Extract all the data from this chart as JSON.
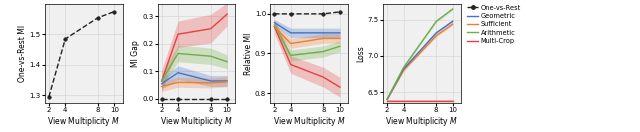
{
  "x": [
    2,
    4,
    8,
    10
  ],
  "panel1": {
    "ylabel": "One-vs-Rest MI",
    "xlabel": "View Multiplicity $M$",
    "ovr_mean": [
      1.295,
      1.485,
      1.555,
      1.575
    ],
    "ylim": [
      1.275,
      1.6
    ]
  },
  "panel2": {
    "ylabel": "MI Gap",
    "xlabel": "View Multiplicity $M$",
    "ylim": [
      -0.015,
      0.345
    ],
    "yticks": [
      0.0,
      0.1,
      0.2,
      0.3
    ],
    "ovr_mean": [
      0.0,
      0.0,
      0.0,
      0.0
    ],
    "geo_mean": [
      0.055,
      0.095,
      0.065,
      0.065
    ],
    "geo_std": [
      0.02,
      0.025,
      0.02,
      0.02
    ],
    "suf_mean": [
      0.045,
      0.06,
      0.058,
      0.062
    ],
    "suf_std": [
      0.018,
      0.018,
      0.018,
      0.018
    ],
    "ari_mean": [
      0.065,
      0.165,
      0.155,
      0.135
    ],
    "ari_std": [
      0.025,
      0.03,
      0.03,
      0.025
    ],
    "mc_mean": [
      0.065,
      0.235,
      0.255,
      0.308
    ],
    "mc_std": [
      0.038,
      0.048,
      0.052,
      0.042
    ]
  },
  "panel3": {
    "ylabel": "Relative MI",
    "xlabel": "View Multiplicity $M$",
    "ylim": [
      0.775,
      1.025
    ],
    "yticks": [
      0.8,
      0.9,
      1.0
    ],
    "ovr_mean": [
      1.0,
      1.0,
      1.0,
      1.005
    ],
    "geo_mean": [
      0.978,
      0.952,
      0.952,
      0.952
    ],
    "geo_std": [
      0.008,
      0.012,
      0.012,
      0.012
    ],
    "suf_mean": [
      0.968,
      0.925,
      0.938,
      0.938
    ],
    "suf_std": [
      0.008,
      0.012,
      0.012,
      0.012
    ],
    "ari_mean": [
      0.972,
      0.895,
      0.905,
      0.918
    ],
    "ari_std": [
      0.008,
      0.014,
      0.014,
      0.014
    ],
    "mc_mean": [
      0.968,
      0.872,
      0.84,
      0.815
    ],
    "mc_std": [
      0.018,
      0.022,
      0.025,
      0.025
    ]
  },
  "panel4": {
    "ylabel": "Loss",
    "xlabel": "View Multiplicity $M$",
    "ylim": [
      6.35,
      7.72
    ],
    "yticks": [
      6.5,
      7.0,
      7.5
    ],
    "geo_mean": [
      6.4,
      6.82,
      7.32,
      7.48
    ],
    "geo_std": [
      0.008,
      0.015,
      0.015,
      0.015
    ],
    "suf_mean": [
      6.4,
      6.8,
      7.28,
      7.44
    ],
    "suf_std": [
      0.008,
      0.015,
      0.015,
      0.015
    ],
    "ari_mean": [
      6.4,
      6.84,
      7.48,
      7.65
    ],
    "ari_std": [
      0.008,
      0.015,
      0.015,
      0.015
    ],
    "mc_mean": [
      6.38,
      6.38,
      6.38,
      6.38
    ],
    "mc_std": [
      0.005,
      0.005,
      0.005,
      0.005
    ]
  },
  "colors": {
    "ovr": "#222222",
    "geo": "#4472c4",
    "suf": "#ed7d31",
    "ari": "#70ad47",
    "mc": "#e84040"
  },
  "legend_labels": [
    "One-vs-Rest",
    "Geometric",
    "Sufficient",
    "Arithmetic",
    "Multi-Crop"
  ],
  "figsize": [
    6.4,
    1.32
  ],
  "dpi": 100
}
